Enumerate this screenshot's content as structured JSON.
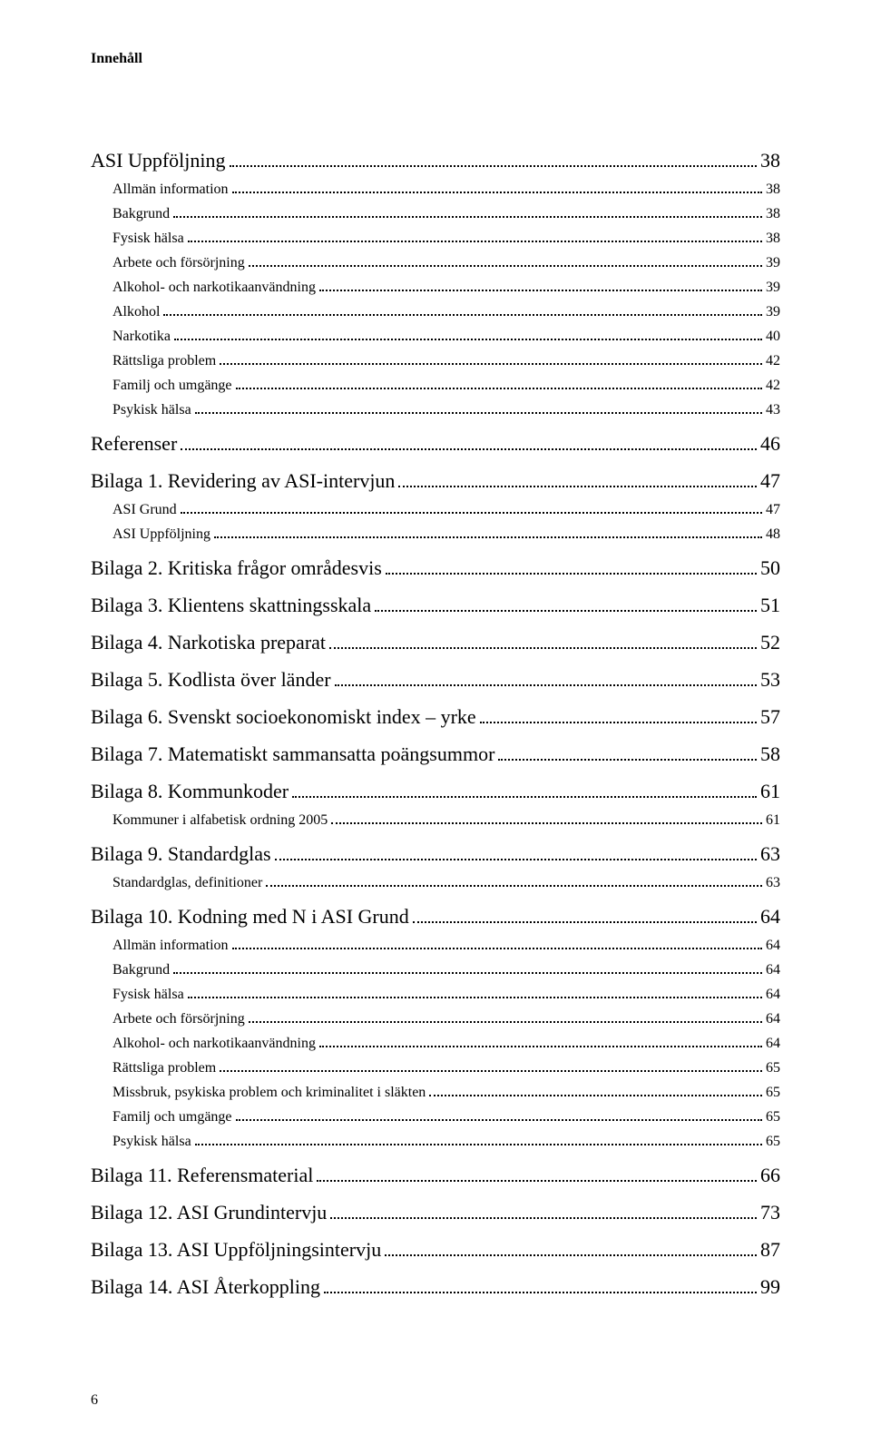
{
  "header": "Innehåll",
  "entries": [
    {
      "level": 1,
      "label": "ASI Uppföljning",
      "page": "38",
      "tight": true
    },
    {
      "level": 2,
      "label": "Allmän information",
      "page": "38"
    },
    {
      "level": 2,
      "label": "Bakgrund",
      "page": "38"
    },
    {
      "level": 2,
      "label": "Fysisk hälsa",
      "page": "38"
    },
    {
      "level": 2,
      "label": "Arbete och försörjning",
      "page": "39"
    },
    {
      "level": 2,
      "label": "Alkohol- och narkotikaanvändning",
      "page": "39"
    },
    {
      "level": 2,
      "label": "Alkohol",
      "page": "39"
    },
    {
      "level": 2,
      "label": "Narkotika",
      "page": "40"
    },
    {
      "level": 2,
      "label": "Rättsliga problem",
      "page": "42"
    },
    {
      "level": 2,
      "label": "Familj och umgänge",
      "page": "42"
    },
    {
      "level": 2,
      "label": "Psykisk hälsa",
      "page": "43"
    },
    {
      "level": 1,
      "label": "Referenser",
      "page": "46"
    },
    {
      "level": 1,
      "label": "Bilaga 1. Revidering av ASI-intervjun",
      "page": "47"
    },
    {
      "level": 2,
      "label": "ASI Grund",
      "page": "47"
    },
    {
      "level": 2,
      "label": "ASI Uppföljning",
      "page": "48"
    },
    {
      "level": 1,
      "label": "Bilaga 2. Kritiska frågor områdesvis",
      "page": "50"
    },
    {
      "level": 1,
      "label": "Bilaga 3. Klientens skattningsskala",
      "page": "51"
    },
    {
      "level": 1,
      "label": "Bilaga 4. Narkotiska preparat",
      "page": "52"
    },
    {
      "level": 1,
      "label": "Bilaga 5. Kodlista över länder",
      "page": "53"
    },
    {
      "level": 1,
      "label": "Bilaga 6. Svenskt socioekonomiskt index – yrke",
      "page": "57"
    },
    {
      "level": 1,
      "label": "Bilaga 7. Matematiskt sammansatta poängsummor",
      "page": "58"
    },
    {
      "level": 1,
      "label": "Bilaga 8. Kommunkoder",
      "page": "61"
    },
    {
      "level": 2,
      "label": "Kommuner i alfabetisk ordning 2005",
      "page": "61"
    },
    {
      "level": 1,
      "label": "Bilaga 9. Standardglas",
      "page": "63"
    },
    {
      "level": 2,
      "label": "Standardglas, definitioner",
      "page": "63"
    },
    {
      "level": 1,
      "label": "Bilaga 10. Kodning med N i ASI Grund",
      "page": "64"
    },
    {
      "level": 2,
      "label": "Allmän information",
      "page": "64"
    },
    {
      "level": 2,
      "label": "Bakgrund",
      "page": "64"
    },
    {
      "level": 2,
      "label": "Fysisk hälsa",
      "page": "64"
    },
    {
      "level": 2,
      "label": "Arbete och försörjning",
      "page": "64"
    },
    {
      "level": 2,
      "label": "Alkohol- och narkotikaanvändning",
      "page": "64"
    },
    {
      "level": 2,
      "label": "Rättsliga problem",
      "page": "65"
    },
    {
      "level": 2,
      "label": "Missbruk, psykiska problem och kriminalitet i släkten",
      "page": "65"
    },
    {
      "level": 2,
      "label": "Familj och umgänge",
      "page": "65"
    },
    {
      "level": 2,
      "label": "Psykisk hälsa",
      "page": "65"
    },
    {
      "level": 1,
      "label": "Bilaga 11. Referensmaterial",
      "page": "66"
    },
    {
      "level": 1,
      "label": "Bilaga 12. ASI Grundintervju",
      "page": "73"
    },
    {
      "level": 1,
      "label": "Bilaga 13. ASI Uppföljningsintervju",
      "page": "87"
    },
    {
      "level": 1,
      "label": "Bilaga 14. ASI Återkoppling",
      "page": "99"
    }
  ],
  "pageNumber": "6",
  "colors": {
    "text": "#000000",
    "background": "#ffffff"
  },
  "typography": {
    "header_fontsize": 16,
    "lvl1_fontsize": 22,
    "lvl2_fontsize": 16,
    "font_family": "Georgia, serif"
  }
}
